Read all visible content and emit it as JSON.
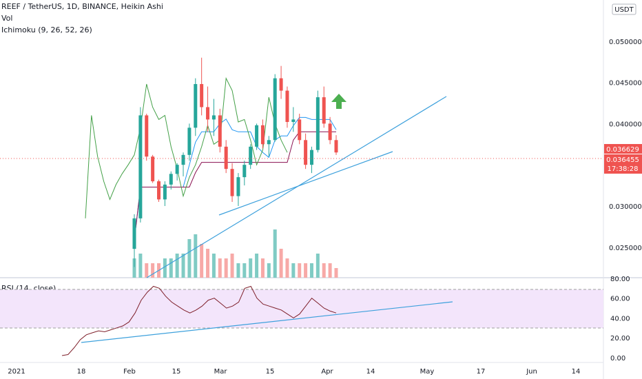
{
  "header": {
    "title": "REEF / TetherUS, 1D, BINANCE, Heikin Ashi",
    "vol_label": "Vol",
    "ichimoku_label": "Ichimoku (9, 26, 52, 26)",
    "rsi_label": "RSI (14, close)",
    "currency_badge": "USDT"
  },
  "colors": {
    "up": "#26a69a",
    "down": "#ef5350",
    "conversion": "#2196f3",
    "base": "#880e4f",
    "lagging": "#43a047",
    "lead_b": "#f44336",
    "cloud": "#e8f5e9",
    "rsi_line": "#7e1f2a",
    "rsi_band": "#f3e5fb",
    "trend": "#3ca0dc",
    "arrow": "#4caf50"
  },
  "chart_data": [
    {
      "type": "candlestick",
      "title": "REEF / TetherUS, 1D, BINANCE, Heikin Ashi",
      "yaxis_ticks": [
        "0.025000",
        "0.030000",
        "0.035000",
        "0.040000",
        "0.045000",
        "0.050000"
      ],
      "ylim": [
        0.0213,
        0.055
      ],
      "xaxis_ticks": [
        "2021",
        "18",
        "Feb",
        "15",
        "Mar",
        "15",
        "Apr",
        "14",
        "May",
        "17",
        "Jun",
        "14"
      ],
      "last_price": "0.036629",
      "current_value": "0.036455",
      "countdown": "17:38:28",
      "candles": [
        [
          0.0248,
          0.029,
          0.0226,
          0.0285
        ],
        [
          0.0285,
          0.042,
          0.028,
          0.041
        ],
        [
          0.041,
          0.0412,
          0.0355,
          0.036
        ],
        [
          0.036,
          0.0362,
          0.0328,
          0.033
        ],
        [
          0.033,
          0.0332,
          0.0305,
          0.0308
        ],
        [
          0.0308,
          0.033,
          0.03,
          0.0326
        ],
        [
          0.0326,
          0.0342,
          0.032,
          0.0339
        ],
        [
          0.0339,
          0.0352,
          0.0331,
          0.035
        ],
        [
          0.035,
          0.0365,
          0.0336,
          0.0362
        ],
        [
          0.0362,
          0.04,
          0.0355,
          0.0395
        ],
        [
          0.0395,
          0.0455,
          0.0385,
          0.0448
        ],
        [
          0.0448,
          0.048,
          0.041,
          0.042
        ],
        [
          0.042,
          0.0445,
          0.039,
          0.0405
        ],
        [
          0.0405,
          0.043,
          0.0385,
          0.041
        ],
        [
          0.041,
          0.0418,
          0.0365,
          0.0372
        ],
        [
          0.0372,
          0.038,
          0.034,
          0.0345
        ],
        [
          0.0345,
          0.0352,
          0.0305,
          0.0312
        ],
        [
          0.0312,
          0.034,
          0.03,
          0.0335
        ],
        [
          0.0335,
          0.0355,
          0.0325,
          0.035
        ],
        [
          0.035,
          0.0375,
          0.0345,
          0.0372
        ],
        [
          0.0372,
          0.04,
          0.0368,
          0.0398
        ],
        [
          0.0398,
          0.0405,
          0.037,
          0.0375
        ],
        [
          0.0375,
          0.0385,
          0.036,
          0.038
        ],
        [
          0.038,
          0.046,
          0.0378,
          0.0455
        ],
        [
          0.0455,
          0.047,
          0.043,
          0.044
        ],
        [
          0.044,
          0.0445,
          0.0395,
          0.0402
        ],
        [
          0.0402,
          0.042,
          0.039,
          0.0405
        ],
        [
          0.0405,
          0.0412,
          0.0375,
          0.038
        ],
        [
          0.038,
          0.0388,
          0.0345,
          0.035
        ],
        [
          0.035,
          0.0372,
          0.034,
          0.0368
        ],
        [
          0.0368,
          0.044,
          0.0365,
          0.0432
        ],
        [
          0.0432,
          0.0445,
          0.0395,
          0.04
        ],
        [
          0.04,
          0.0408,
          0.0375,
          0.038
        ],
        [
          0.038,
          0.0386,
          0.0362,
          0.0365
        ]
      ],
      "volume": [
        4,
        5,
        3,
        3,
        3,
        4,
        4,
        5,
        5,
        8,
        9,
        7,
        6,
        5,
        4,
        4,
        5,
        3,
        3,
        4,
        5,
        4,
        3,
        10,
        6,
        4,
        3,
        3,
        3,
        3,
        5,
        3,
        3,
        2
      ]
    },
    {
      "type": "line",
      "title": "RSI (14, close)",
      "yaxis_ticks": [
        "0.00",
        "20.00",
        "40.00",
        "60.00",
        "80.00"
      ],
      "ylim": [
        -5,
        80
      ],
      "band": [
        30,
        70
      ],
      "values": [
        2,
        3,
        10,
        18,
        23,
        25,
        27,
        26,
        28,
        30,
        32,
        36,
        45,
        58,
        66,
        72,
        70,
        62,
        56,
        52,
        48,
        45,
        48,
        52,
        58,
        60,
        55,
        50,
        52,
        56,
        70,
        72,
        60,
        54,
        52,
        50,
        48,
        44,
        40,
        44,
        52,
        60,
        55,
        50,
        47,
        45
      ]
    }
  ]
}
